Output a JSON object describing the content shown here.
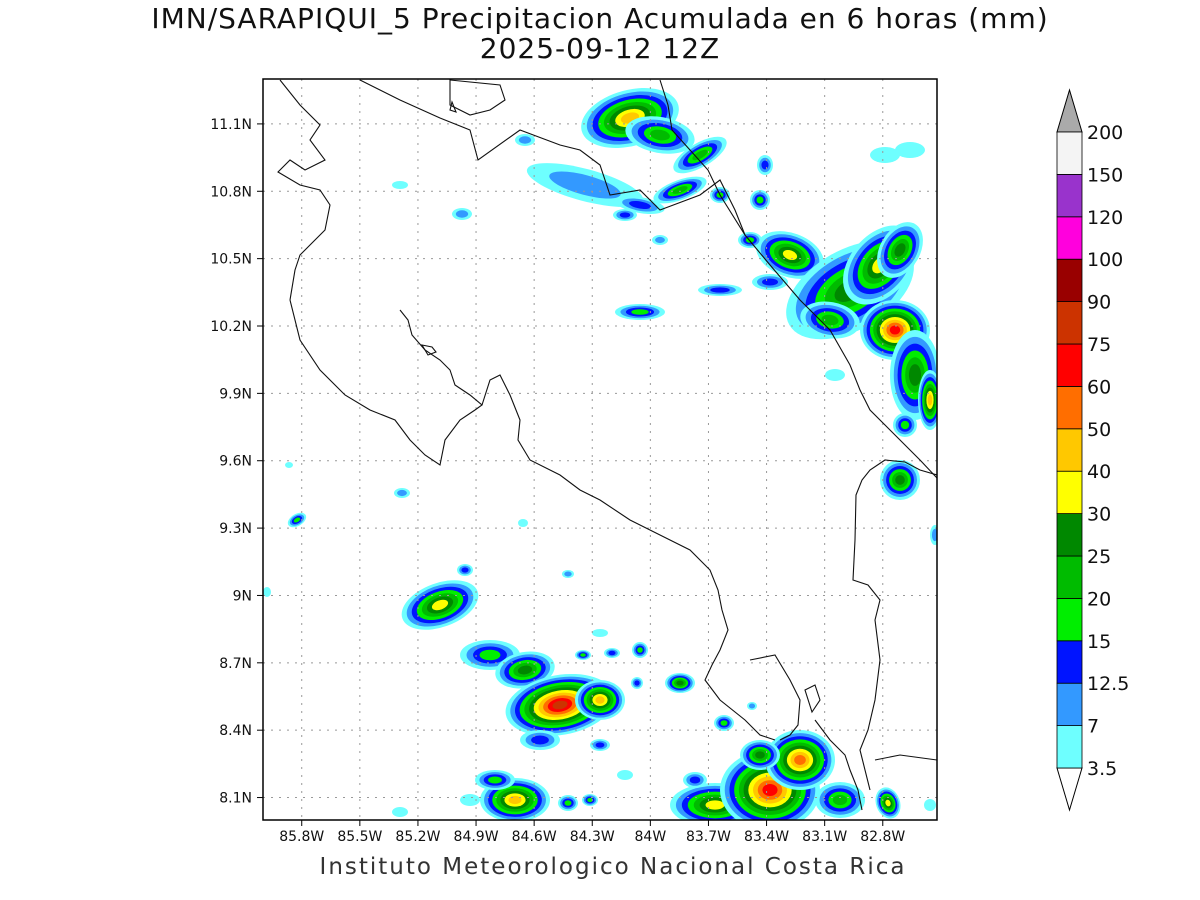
{
  "title": "IMN/SARAPIQUI_5 Precipitacion Acumulada en 6 horas (mm)",
  "subtitle": "2025-09-12 12Z",
  "footer": "Instituto Meteorologico Nacional Costa Rica",
  "map": {
    "lon_range": [
      -86.0,
      -82.52
    ],
    "lat_range": [
      8.0,
      11.3
    ],
    "lon_ticks": [
      -85.8,
      -85.5,
      -85.2,
      -84.9,
      -84.6,
      -84.3,
      -84.0,
      -83.7,
      -83.4,
      -83.1,
      -82.8
    ],
    "lon_labels": [
      "85.8W",
      "85.5W",
      "85.2W",
      "84.9W",
      "84.6W",
      "84.3W",
      "84W",
      "83.7W",
      "83.4W",
      "83.1W",
      "82.8W"
    ],
    "lat_ticks": [
      8.1,
      8.4,
      8.7,
      9.0,
      9.3,
      9.6,
      9.9,
      10.2,
      10.5,
      10.8,
      11.1
    ],
    "lat_labels": [
      "8.1N",
      "8.4N",
      "8.7N",
      "9N",
      "9.3N",
      "9.6N",
      "9.9N",
      "10.2N",
      "10.5N",
      "10.8N",
      "11.1N"
    ],
    "grid": true
  },
  "colorbar": {
    "levels": [
      "3.5",
      "7",
      "12.5",
      "15",
      "20",
      "25",
      "30",
      "40",
      "50",
      "60",
      "75",
      "90",
      "100",
      "120",
      "150",
      "200"
    ],
    "colors": [
      "#6effff",
      "#3399ff",
      "#0014ff",
      "#00ee00",
      "#00bb00",
      "#008800",
      "#ffff00",
      "#ffc800",
      "#ff6e00",
      "#ff0000",
      "#cc3300",
      "#990000",
      "#ff00dd",
      "#9933cc",
      "#f4f4f4",
      "#aaaaaa"
    ]
  }
}
